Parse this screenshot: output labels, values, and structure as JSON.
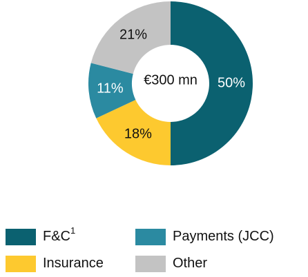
{
  "chart_data": {
    "type": "donut",
    "center_label": "€300 mn",
    "series": [
      {
        "name": "F&C",
        "name_superscript": "1",
        "color": "#0b6170",
        "values": [
          50
        ],
        "value_labels": [
          "50%"
        ]
      },
      {
        "name": "Insurance",
        "color": "#fdc92f",
        "values": [
          18
        ],
        "value_labels": [
          "18%"
        ]
      },
      {
        "name": "Payments (JCC)",
        "color": "#2b8aa1",
        "values": [
          11
        ],
        "value_labels": [
          "11%"
        ]
      },
      {
        "name": "Other",
        "color": "#c3c3c3",
        "values": [
          21
        ],
        "value_labels": [
          "21%"
        ]
      }
    ],
    "legend_order": [
      0,
      2,
      1,
      3
    ]
  }
}
